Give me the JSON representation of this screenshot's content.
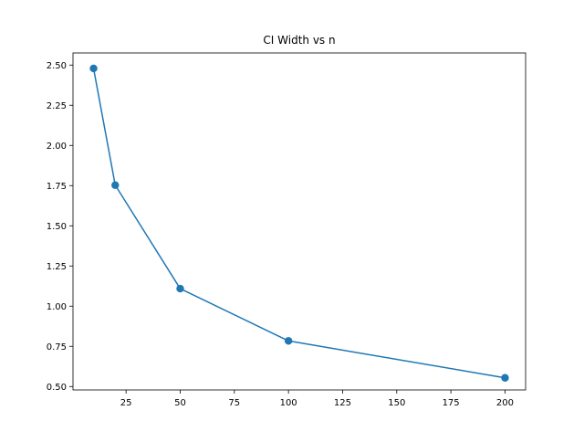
{
  "chart_data": {
    "type": "line",
    "title": "CI Width vs n",
    "xlabel": "",
    "ylabel": "",
    "x": [
      10,
      20,
      50,
      100,
      200
    ],
    "series": [
      {
        "values": [
          2.479,
          1.753,
          1.109,
          0.784,
          0.554
        ],
        "color": "#1f77b4",
        "marker": "circle"
      }
    ],
    "xlim": [
      0.5,
      209.5
    ],
    "ylim": [
      0.4787,
      2.5753
    ],
    "xticks": [
      25,
      50,
      75,
      100,
      125,
      150,
      175,
      200
    ],
    "xtick_labels": [
      "25",
      "50",
      "75",
      "100",
      "125",
      "150",
      "175",
      "200"
    ],
    "yticks": [
      0.5,
      0.75,
      1.0,
      1.25,
      1.5,
      1.75,
      2.0,
      2.25,
      2.5
    ],
    "ytick_labels": [
      "0.50",
      "0.75",
      "1.00",
      "1.25",
      "1.50",
      "1.75",
      "2.00",
      "2.25",
      "2.50"
    ],
    "grid": false,
    "legend": "none"
  }
}
